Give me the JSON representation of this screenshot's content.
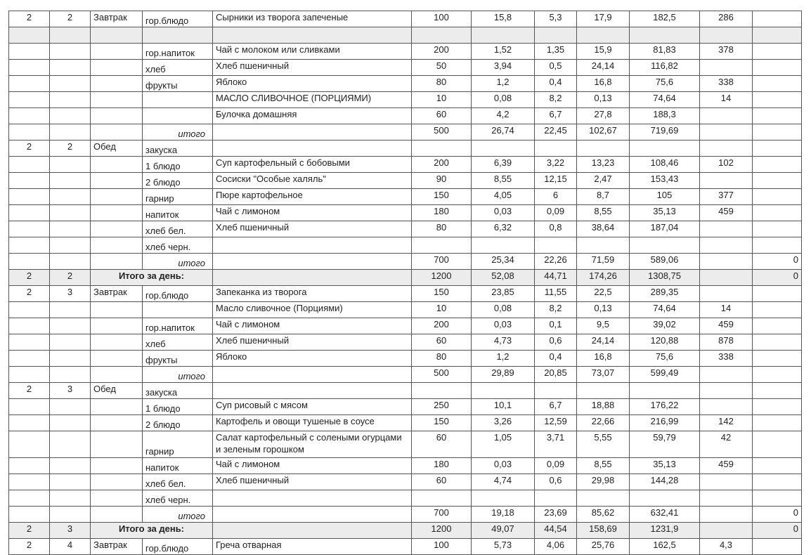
{
  "rows": [
    {
      "type": "item",
      "cells": [
        "2",
        "2",
        "Завтрак",
        "гор.блюдо",
        "Сырники из творога запеченые",
        "100",
        "15,8",
        "5,3",
        "17,9",
        "182,5",
        "286",
        ""
      ]
    },
    {
      "type": "blank",
      "cells": [
        "",
        "",
        "",
        "",
        "",
        "",
        "",
        "",
        "",
        "",
        "",
        ""
      ]
    },
    {
      "type": "item",
      "cells": [
        "",
        "",
        "",
        "гор.напиток",
        "Чай с молоком или сливками",
        "200",
        "1,52",
        "1,35",
        "15,9",
        "81,83",
        "378",
        ""
      ]
    },
    {
      "type": "item",
      "cells": [
        "",
        "",
        "",
        "хлеб",
        "Хлеб пшеничный",
        "50",
        "3,94",
        "0,5",
        "24,14",
        "116,82",
        "",
        ""
      ]
    },
    {
      "type": "item",
      "cells": [
        "",
        "",
        "",
        "фрукты",
        "Яблоко",
        "80",
        "1,2",
        "0,4",
        "16,8",
        "75,6",
        "338",
        ""
      ]
    },
    {
      "type": "item",
      "cells": [
        "",
        "",
        "",
        "",
        "МАСЛО СЛИВОЧНОЕ (ПОРЦИЯМИ)",
        "10",
        "0,08",
        "8,2",
        "0,13",
        "74,64",
        "14",
        ""
      ]
    },
    {
      "type": "item",
      "cells": [
        "",
        "",
        "",
        "",
        "Булочка домашняя",
        "60",
        "4,2",
        "6,7",
        "27,8",
        "188,3",
        "",
        ""
      ]
    },
    {
      "type": "itogo",
      "cells": [
        "",
        "",
        "",
        "итого",
        "",
        "500",
        "26,74",
        "22,45",
        "102,67",
        "719,69",
        "",
        ""
      ]
    },
    {
      "type": "item",
      "cells": [
        "2",
        "2",
        "Обед",
        "закуска",
        "",
        "",
        "",
        "",
        "",
        "",
        "",
        ""
      ]
    },
    {
      "type": "item",
      "cells": [
        "",
        "",
        "",
        "1 блюдо",
        "Суп картофельный с бобовыми",
        "200",
        "6,39",
        "3,22",
        "13,23",
        "108,46",
        "102",
        ""
      ]
    },
    {
      "type": "item",
      "cells": [
        "",
        "",
        "",
        "2 блюдо",
        "Сосиски \"Особые халяль\"",
        "90",
        "8,55",
        "12,15",
        "2,47",
        "153,43",
        "",
        ""
      ]
    },
    {
      "type": "item",
      "cells": [
        "",
        "",
        "",
        "гарнир",
        "Пюре картофельное",
        "150",
        "4,05",
        "6",
        "8,7",
        "105",
        "377",
        ""
      ]
    },
    {
      "type": "item",
      "cells": [
        "",
        "",
        "",
        "напиток",
        "Чай с лимоном",
        "180",
        "0,03",
        "0,09",
        "8,55",
        "35,13",
        "459",
        ""
      ]
    },
    {
      "type": "item",
      "cells": [
        "",
        "",
        "",
        "хлеб бел.",
        "Хлеб пшеничный",
        "80",
        "6,32",
        "0,8",
        "38,64",
        "187,04",
        "",
        ""
      ]
    },
    {
      "type": "item",
      "cells": [
        "",
        "",
        "",
        "хлеб черн.",
        "",
        "",
        "",
        "",
        "",
        "",
        "",
        ""
      ]
    },
    {
      "type": "itogo",
      "cells": [
        "",
        "",
        "",
        "итого",
        "",
        "700",
        "25,34",
        "22,26",
        "71,59",
        "589,06",
        "",
        "0"
      ]
    },
    {
      "type": "day",
      "cells": [
        "2",
        "2",
        "Итого за день:",
        "",
        "",
        "1200",
        "52,08",
        "44,71",
        "174,26",
        "1308,75",
        "",
        "0"
      ]
    },
    {
      "type": "item",
      "cells": [
        "2",
        "3",
        "Завтрак",
        "гор.блюдо",
        "Запеканка из творога",
        "150",
        "23,85",
        "11,55",
        "22,5",
        "289,35",
        "",
        ""
      ]
    },
    {
      "type": "item",
      "cells": [
        "",
        "",
        "",
        "",
        "Масло сливочное (Порциями)",
        "10",
        "0,08",
        "8,2",
        "0,13",
        "74,64",
        "14",
        ""
      ]
    },
    {
      "type": "item",
      "cells": [
        "",
        "",
        "",
        "гор.напиток",
        "Чай с лимоном",
        "200",
        "0,03",
        "0,1",
        "9,5",
        "39,02",
        "459",
        ""
      ]
    },
    {
      "type": "item",
      "cells": [
        "",
        "",
        "",
        "хлеб",
        "Хлеб пшеничный",
        "60",
        "4,73",
        "0,6",
        "24,14",
        "120,88",
        "878",
        ""
      ]
    },
    {
      "type": "item",
      "cells": [
        "",
        "",
        "",
        "фрукты",
        "Яблоко",
        "80",
        "1,2",
        "0,4",
        "16,8",
        "75,6",
        "338",
        ""
      ]
    },
    {
      "type": "itogo",
      "cells": [
        "",
        "",
        "",
        "итого",
        "",
        "500",
        "29,89",
        "20,85",
        "73,07",
        "599,49",
        "",
        ""
      ]
    },
    {
      "type": "item",
      "cells": [
        "2",
        "3",
        "Обед",
        "закуска",
        "",
        "",
        "",
        "",
        "",
        "",
        "",
        ""
      ]
    },
    {
      "type": "item",
      "cells": [
        "",
        "",
        "",
        "1 блюдо",
        "Суп рисовый с мясом",
        "250",
        "10,1",
        "6,7",
        "18,88",
        "176,22",
        "",
        ""
      ]
    },
    {
      "type": "item",
      "cells": [
        "",
        "",
        "",
        "2 блюдо",
        "Картофель и овощи тушеные в соусе",
        "150",
        "3,26",
        "12,59",
        "22,66",
        "216,99",
        "142",
        ""
      ]
    },
    {
      "type": "tall",
      "cells": [
        "",
        "",
        "",
        "гарнир",
        "Салат картофельный с солеными огурцами и зеленым горошком",
        "60",
        "1,05",
        "3,71",
        "5,55",
        "59,79",
        "42",
        ""
      ]
    },
    {
      "type": "item",
      "cells": [
        "",
        "",
        "",
        "напиток",
        "Чай с лимоном",
        "180",
        "0,03",
        "0,09",
        "8,55",
        "35,13",
        "459",
        ""
      ]
    },
    {
      "type": "item",
      "cells": [
        "",
        "",
        "",
        "хлеб бел.",
        "Хлеб пшеничный",
        "60",
        "4,74",
        "0,6",
        "29,98",
        "144,28",
        "",
        ""
      ]
    },
    {
      "type": "item",
      "cells": [
        "",
        "",
        "",
        "хлеб черн.",
        "",
        "",
        "",
        "",
        "",
        "",
        "",
        ""
      ]
    },
    {
      "type": "itogo",
      "cells": [
        "",
        "",
        "",
        "итого",
        "",
        "700",
        "19,18",
        "23,69",
        "85,62",
        "632,41",
        "",
        "0"
      ]
    },
    {
      "type": "day",
      "cells": [
        "2",
        "3",
        "Итого за день:",
        "",
        "",
        "1200",
        "49,07",
        "44,54",
        "158,69",
        "1231,9",
        "",
        "0"
      ]
    },
    {
      "type": "item",
      "cells": [
        "2",
        "4",
        "Завтрак",
        "гор.блюдо",
        "Греча отварная",
        "100",
        "5,73",
        "4,06",
        "25,76",
        "162,5",
        "4,3",
        ""
      ]
    }
  ]
}
